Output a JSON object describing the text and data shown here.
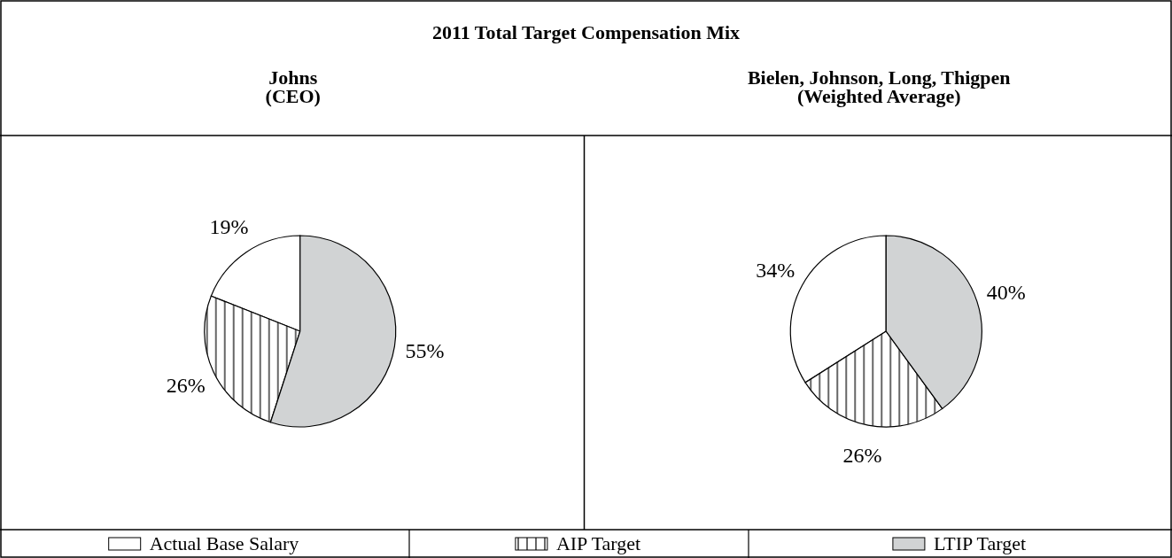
{
  "chart_data": [
    {
      "type": "pie",
      "title": "2011 Total Target Compensation Mix",
      "subtitle": "Johns\n(CEO)",
      "categories": [
        "Actual Base Salary",
        "AIP Target",
        "LTIP Target"
      ],
      "values": [
        19,
        26,
        55
      ],
      "value_labels": [
        "19%",
        "26%",
        "55%"
      ],
      "colors": [
        "#ffffff",
        "#000000",
        "#d1d3d4"
      ],
      "legend": "bottom"
    },
    {
      "type": "pie",
      "subtitle": "Bielen, Johnson, Long, Thigpen\n(Weighted Average)",
      "categories": [
        null,
        null,
        null
      ],
      "values": [
        34,
        26,
        40
      ],
      "value_labels": [
        "34%",
        "26%",
        "40%"
      ],
      "colors": [
        "#ffffff",
        "#000000",
        "#d1d3d4"
      ]
    }
  ]
}
